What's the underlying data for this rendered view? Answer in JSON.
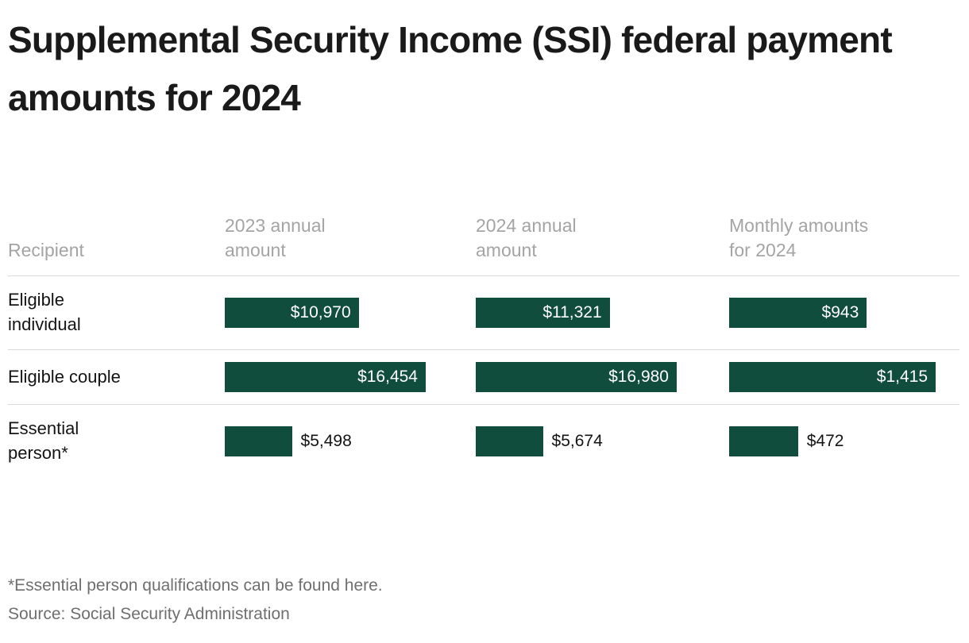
{
  "title": "Supplemental Security Income (SSI) federal payment amounts for 2024",
  "colors": {
    "bar": "#114d3c",
    "header_text": "#a4a4a4",
    "divider": "#d9d9d9",
    "muted_text": "#6f6f6f",
    "title_text": "#1a1a1a",
    "bar_label_inside": "#ffffff"
  },
  "table": {
    "recipient_header": "Recipient",
    "column_headers": [
      "2023 annual\namount",
      "2024 annual\namount",
      "Monthly amounts\nfor 2024"
    ],
    "rows": [
      {
        "recipient": "Eligible\nindividual",
        "values": [
          "$10,970",
          "$11,321",
          "$943"
        ],
        "label_inside": true
      },
      {
        "recipient": "Eligible couple",
        "values": [
          "$16,454",
          "$16,980",
          "$1,415"
        ],
        "label_inside": true
      },
      {
        "recipient": "Essential\nperson*",
        "values": [
          "$5,498",
          "$5,674",
          "$472"
        ],
        "label_inside": false
      }
    ]
  },
  "footnote": "*Essential person qualifications can be found here.",
  "source": "Source: Social Security Administration",
  "chart_data": {
    "type": "bar",
    "orientation": "horizontal",
    "title": "Supplemental Security Income (SSI) federal payment amounts for 2024",
    "categories": [
      "Eligible individual",
      "Eligible couple",
      "Essential person*"
    ],
    "series": [
      {
        "name": "2023 annual amount",
        "values": [
          10970,
          16454,
          5498
        ]
      },
      {
        "name": "2024 annual amount",
        "values": [
          11321,
          16980,
          5674
        ]
      },
      {
        "name": "Monthly amounts for 2024",
        "values": [
          943,
          1415,
          472
        ]
      }
    ],
    "value_format": "currency_usd",
    "bar_scaling": "each column scaled to its own maximum value",
    "legend_position": "column headers",
    "grid": false
  }
}
